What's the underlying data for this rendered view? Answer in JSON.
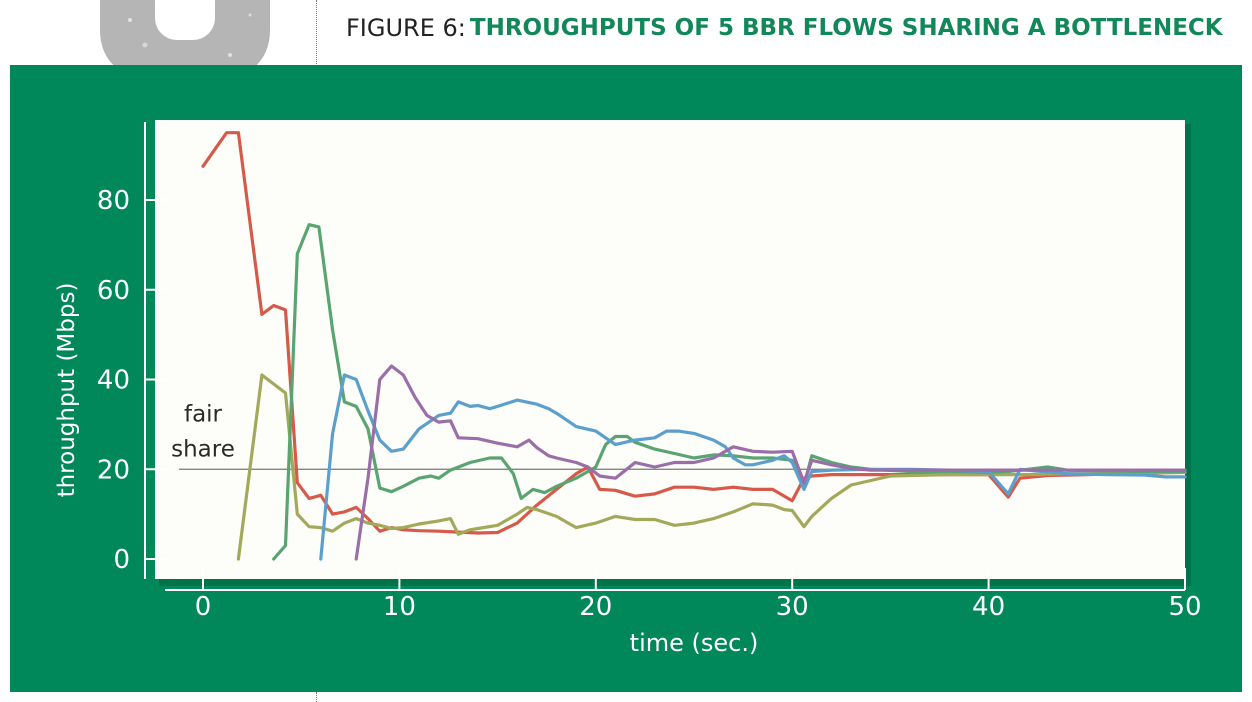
{
  "figure": {
    "label": "FIGURE 6:",
    "caption": "THROUGHPUTS OF 5 BBR FLOWS SHARING A BOTTLENECK"
  },
  "colors": {
    "panel": "#00875a",
    "plot_bg": "#fdfdf9",
    "axis_text": "#ffffff",
    "caption": "#12875a"
  },
  "chart_data": {
    "type": "line",
    "xlabel": "time (sec.)",
    "ylabel": "throughput (Mbps)",
    "xlim": [
      0,
      50
    ],
    "ylim": [
      0,
      95
    ],
    "xticks": [
      0,
      10,
      20,
      30,
      40,
      50
    ],
    "yticks": [
      0,
      20,
      40,
      60,
      80
    ],
    "grid": false,
    "reference_line": {
      "y": 20,
      "label_line1": "fair",
      "label_line2": "share"
    },
    "series": [
      {
        "color": "#d65a4a",
        "points": [
          [
            0,
            87.5
          ],
          [
            1.2,
            95
          ],
          [
            1.8,
            95
          ],
          [
            3,
            54.5
          ],
          [
            3.6,
            56.5
          ],
          [
            4.2,
            55.5
          ],
          [
            4.8,
            17
          ],
          [
            5.4,
            13.5
          ],
          [
            6,
            14.2
          ],
          [
            6.6,
            10
          ],
          [
            7.2,
            10.5
          ],
          [
            7.8,
            11.5
          ],
          [
            8.4,
            9
          ],
          [
            9,
            6.2
          ],
          [
            9.6,
            7
          ],
          [
            10.2,
            6.5
          ],
          [
            11,
            6.3
          ],
          [
            12,
            6.2
          ],
          [
            13,
            6
          ],
          [
            14,
            5.8
          ],
          [
            15,
            5.9
          ],
          [
            16,
            8
          ],
          [
            17,
            12
          ],
          [
            18,
            15.5
          ],
          [
            19,
            19
          ],
          [
            19.6,
            20.5
          ],
          [
            20.2,
            15.5
          ],
          [
            21,
            15.3
          ],
          [
            22,
            14
          ],
          [
            23,
            14.5
          ],
          [
            24,
            16
          ],
          [
            25,
            16
          ],
          [
            26,
            15.5
          ],
          [
            27,
            16
          ],
          [
            28,
            15.5
          ],
          [
            29,
            15.5
          ],
          [
            30,
            13
          ],
          [
            30.6,
            18
          ],
          [
            31,
            18.5
          ],
          [
            32,
            18.8
          ],
          [
            34,
            18.8
          ],
          [
            36,
            18.8
          ],
          [
            38,
            18.8
          ],
          [
            40,
            18.8
          ],
          [
            41,
            13.8
          ],
          [
            41.6,
            18
          ],
          [
            43,
            18.6
          ],
          [
            45,
            18.8
          ],
          [
            47,
            19.1
          ],
          [
            50,
            19.3
          ]
        ]
      },
      {
        "color": "#a3a95a",
        "points": [
          [
            1.8,
            0
          ],
          [
            3,
            41
          ],
          [
            4.2,
            37
          ],
          [
            4.8,
            10
          ],
          [
            5.4,
            7.2
          ],
          [
            6,
            7
          ],
          [
            6.6,
            6.2
          ],
          [
            7.2,
            8
          ],
          [
            7.8,
            9
          ],
          [
            8.4,
            8
          ],
          [
            9,
            7.5
          ],
          [
            9.6,
            6.8
          ],
          [
            10.2,
            7
          ],
          [
            11,
            7.8
          ],
          [
            12,
            8.5
          ],
          [
            12.6,
            9
          ],
          [
            13,
            5.5
          ],
          [
            13.6,
            6.5
          ],
          [
            14,
            6.8
          ],
          [
            15,
            7.5
          ],
          [
            16,
            10
          ],
          [
            16.5,
            11.5
          ],
          [
            17,
            11
          ],
          [
            18,
            9.5
          ],
          [
            19,
            7
          ],
          [
            20,
            8
          ],
          [
            21,
            9.5
          ],
          [
            22,
            8.8
          ],
          [
            23,
            8.8
          ],
          [
            24,
            7.5
          ],
          [
            25,
            8
          ],
          [
            26,
            9
          ],
          [
            27,
            10.5
          ],
          [
            28,
            12.3
          ],
          [
            29,
            12
          ],
          [
            29.6,
            11
          ],
          [
            30,
            10.8
          ],
          [
            30.6,
            7.2
          ],
          [
            31,
            9.5
          ],
          [
            32,
            13.5
          ],
          [
            33,
            16.5
          ],
          [
            34,
            17.5
          ],
          [
            35,
            18.5
          ],
          [
            36,
            18.6
          ],
          [
            38,
            18.8
          ],
          [
            40,
            18.8
          ],
          [
            42,
            18.8
          ],
          [
            44,
            19
          ],
          [
            46,
            19
          ],
          [
            48,
            19.2
          ],
          [
            50,
            19.3
          ]
        ]
      },
      {
        "color": "#5aa472",
        "points": [
          [
            3.6,
            0
          ],
          [
            4.2,
            3
          ],
          [
            4.8,
            68
          ],
          [
            5.4,
            74.5
          ],
          [
            5.9,
            74
          ],
          [
            6.6,
            51
          ],
          [
            7.2,
            35
          ],
          [
            7.8,
            34
          ],
          [
            8.4,
            29
          ],
          [
            9,
            15.8
          ],
          [
            9.6,
            15
          ],
          [
            10.2,
            16.2
          ],
          [
            11,
            18
          ],
          [
            11.6,
            18.5
          ],
          [
            12,
            18
          ],
          [
            12.6,
            19.8
          ],
          [
            13.6,
            21.5
          ],
          [
            14.6,
            22.5
          ],
          [
            15.2,
            22.5
          ],
          [
            15.8,
            19
          ],
          [
            16.2,
            13.5
          ],
          [
            16.8,
            15.5
          ],
          [
            17.4,
            14.8
          ],
          [
            18,
            16.2
          ],
          [
            19,
            18
          ],
          [
            20,
            20.5
          ],
          [
            20.5,
            25.5
          ],
          [
            21,
            27.3
          ],
          [
            21.6,
            27.3
          ],
          [
            22,
            26
          ],
          [
            23,
            24.5
          ],
          [
            24,
            23.5
          ],
          [
            25,
            22.5
          ],
          [
            26,
            23.2
          ],
          [
            27,
            23
          ],
          [
            28,
            22.5
          ],
          [
            29,
            22.5
          ],
          [
            30,
            22
          ],
          [
            30.6,
            16.5
          ],
          [
            31,
            23
          ],
          [
            32,
            21.5
          ],
          [
            33,
            20.5
          ],
          [
            34,
            20
          ],
          [
            36,
            19.5
          ],
          [
            38,
            19.5
          ],
          [
            40,
            19.3
          ],
          [
            41,
            19.5
          ],
          [
            42,
            20
          ],
          [
            43,
            20.5
          ],
          [
            44,
            19.8
          ],
          [
            46,
            19.6
          ],
          [
            48,
            19.5
          ],
          [
            50,
            19.5
          ]
        ]
      },
      {
        "color": "#5b9fcc",
        "points": [
          [
            6,
            0
          ],
          [
            6.6,
            28
          ],
          [
            7.2,
            41
          ],
          [
            7.8,
            40
          ],
          [
            8.4,
            33
          ],
          [
            9,
            26.5
          ],
          [
            9.6,
            24
          ],
          [
            10.2,
            24.5
          ],
          [
            11,
            29
          ],
          [
            12,
            32
          ],
          [
            12.6,
            32.5
          ],
          [
            13,
            35
          ],
          [
            13.6,
            34
          ],
          [
            14,
            34.2
          ],
          [
            14.6,
            33.5
          ],
          [
            15,
            34
          ],
          [
            16,
            35.4
          ],
          [
            17,
            34.5
          ],
          [
            17.6,
            33.5
          ],
          [
            18,
            32.5
          ],
          [
            19,
            29.5
          ],
          [
            20,
            28.5
          ],
          [
            21,
            25.5
          ],
          [
            22,
            26.5
          ],
          [
            23,
            27
          ],
          [
            23.6,
            28.5
          ],
          [
            24.2,
            28.5
          ],
          [
            25,
            28
          ],
          [
            26,
            26.5
          ],
          [
            26.6,
            25
          ],
          [
            27,
            22.5
          ],
          [
            27.6,
            21
          ],
          [
            28,
            21
          ],
          [
            29,
            22
          ],
          [
            29.6,
            23
          ],
          [
            30,
            21.5
          ],
          [
            30.6,
            15.5
          ],
          [
            31,
            19.5
          ],
          [
            32,
            19.8
          ],
          [
            34,
            20
          ],
          [
            36,
            20
          ],
          [
            38,
            19.8
          ],
          [
            40,
            19.5
          ],
          [
            41,
            14.5
          ],
          [
            41.6,
            20
          ],
          [
            42,
            19.8
          ],
          [
            44,
            19
          ],
          [
            46,
            18.8
          ],
          [
            48,
            18.7
          ],
          [
            49,
            18.3
          ],
          [
            50,
            18.3
          ]
        ]
      },
      {
        "color": "#9a6ea8",
        "points": [
          [
            7.8,
            0
          ],
          [
            8.4,
            18
          ],
          [
            9,
            40
          ],
          [
            9.6,
            43
          ],
          [
            10.2,
            41
          ],
          [
            10.8,
            36
          ],
          [
            11.4,
            32
          ],
          [
            12,
            30.5
          ],
          [
            12.6,
            30.8
          ],
          [
            13,
            27
          ],
          [
            14,
            26.8
          ],
          [
            15,
            25.8
          ],
          [
            16,
            25
          ],
          [
            16.6,
            26.5
          ],
          [
            17,
            24.8
          ],
          [
            17.6,
            23
          ],
          [
            18,
            22.5
          ],
          [
            19,
            21.5
          ],
          [
            19.6,
            20.5
          ],
          [
            20.2,
            18.5
          ],
          [
            21,
            18
          ],
          [
            22,
            21.5
          ],
          [
            23,
            20.5
          ],
          [
            24,
            21.5
          ],
          [
            25,
            21.5
          ],
          [
            26,
            22.5
          ],
          [
            27,
            25
          ],
          [
            28,
            24
          ],
          [
            29,
            23.8
          ],
          [
            30,
            24
          ],
          [
            30.6,
            17
          ],
          [
            31,
            22
          ],
          [
            32,
            21
          ],
          [
            33,
            20.2
          ],
          [
            34,
            19.8
          ],
          [
            36,
            19.8
          ],
          [
            38,
            19.8
          ],
          [
            40,
            19.8
          ],
          [
            42,
            19.8
          ],
          [
            44,
            19.8
          ],
          [
            46,
            19.8
          ],
          [
            48,
            19.8
          ],
          [
            50,
            19.8
          ]
        ]
      }
    ]
  }
}
